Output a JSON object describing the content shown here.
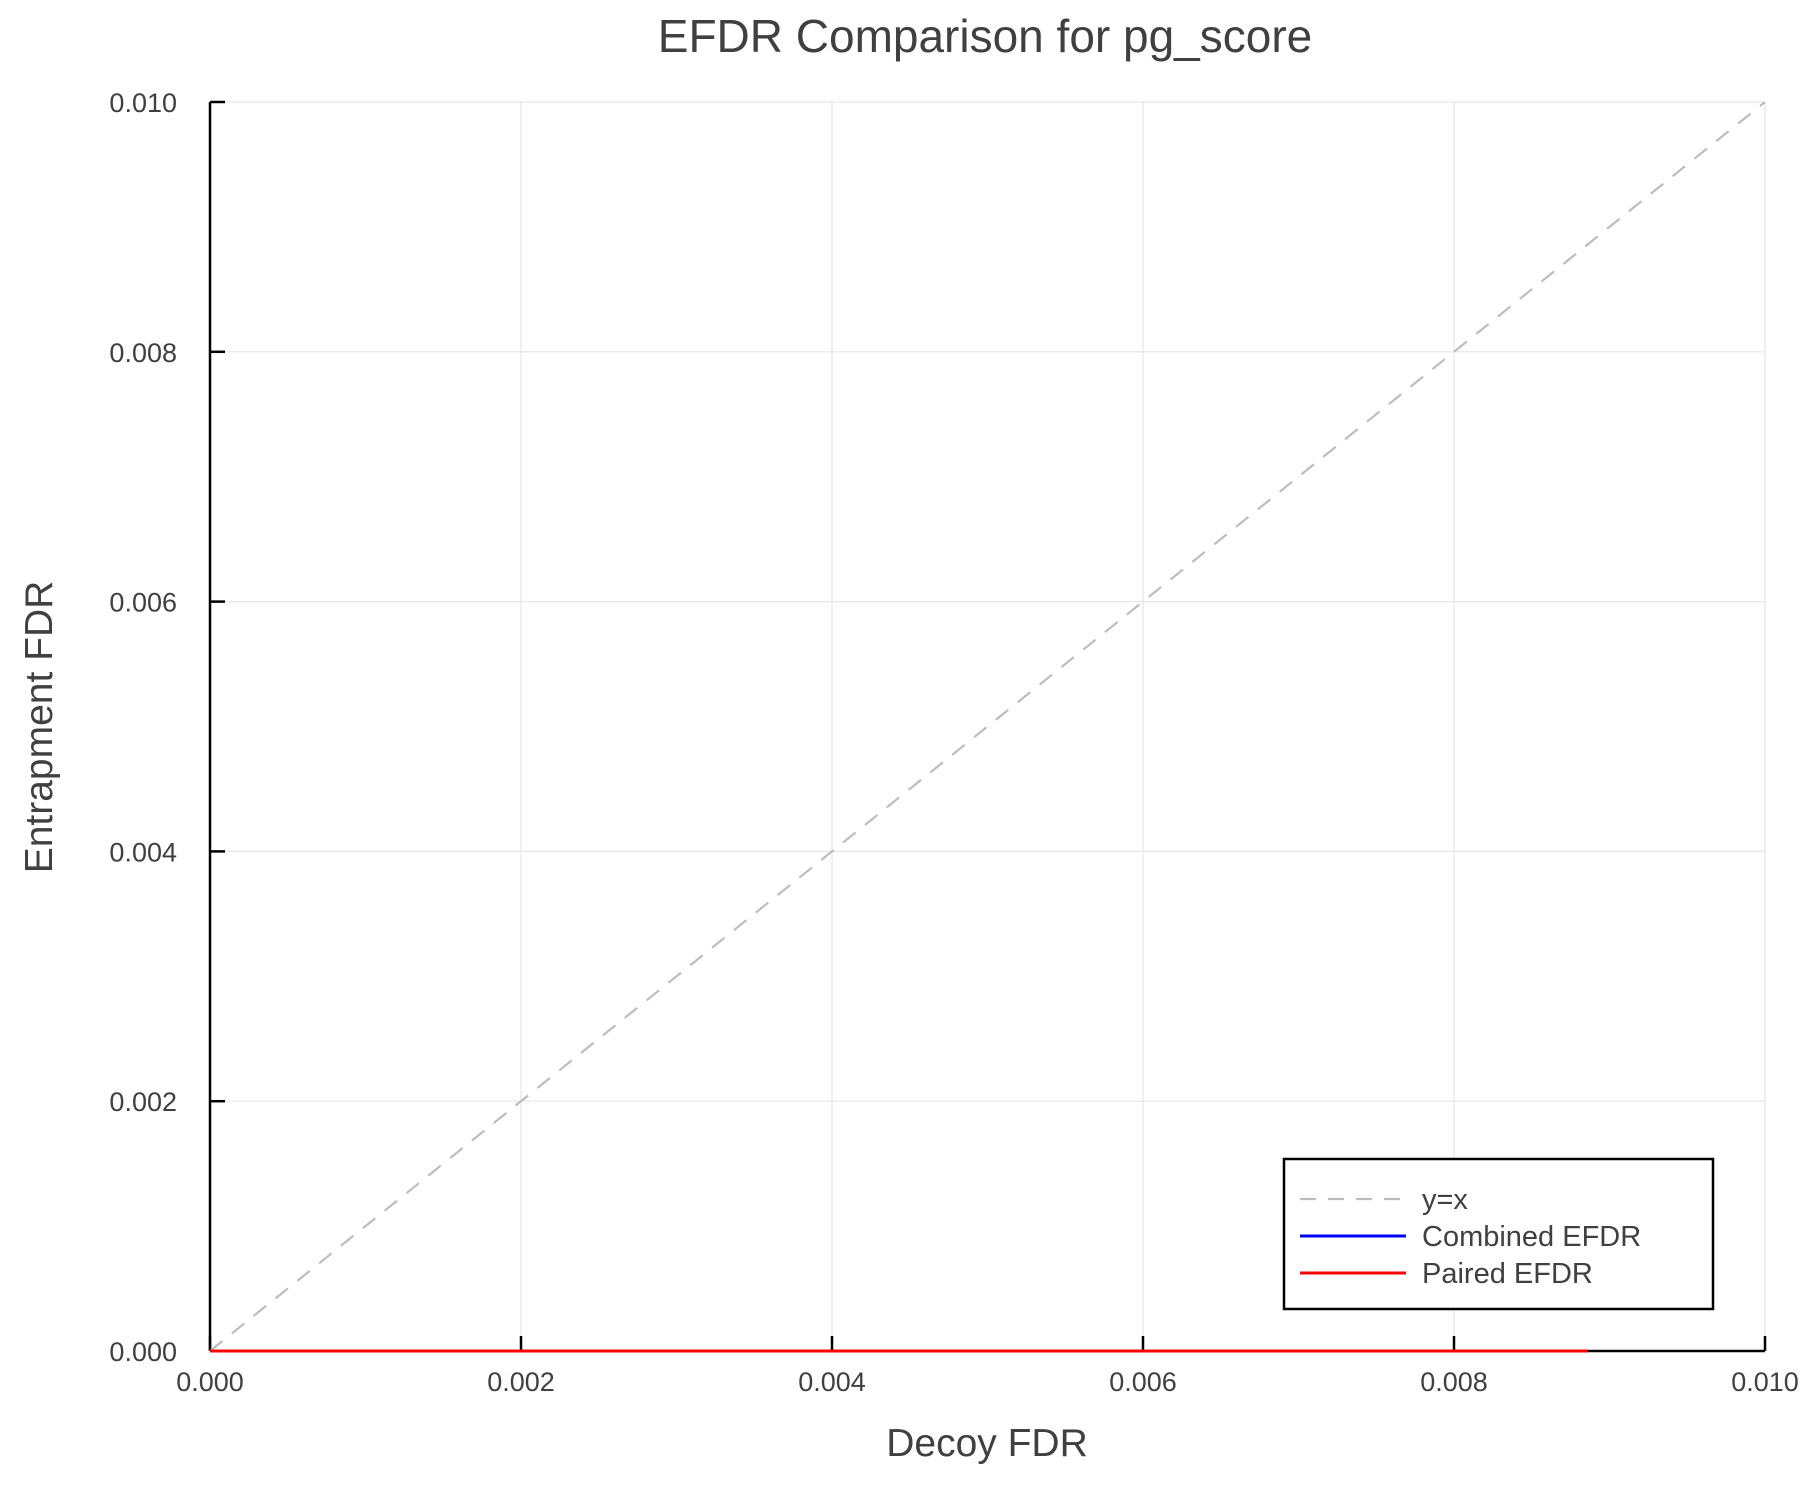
{
  "chart_data": {
    "type": "line",
    "title": "EFDR Comparison for pg_score",
    "xlabel": "Decoy FDR",
    "ylabel": "Entrapment FDR",
    "xlim": [
      0,
      0.01
    ],
    "ylim": [
      0,
      0.01
    ],
    "xticks": [
      "0.000",
      "0.002",
      "0.004",
      "0.006",
      "0.008",
      "0.010"
    ],
    "yticks": [
      "0.000",
      "0.002",
      "0.004",
      "0.006",
      "0.008",
      "0.010"
    ],
    "grid": true,
    "legend_position": "bottom-right",
    "series": [
      {
        "name": "y=x",
        "color": "#bdbdbd",
        "style": "dashed",
        "x": [
          0,
          0.01
        ],
        "y": [
          0,
          0.01
        ]
      },
      {
        "name": "Combined EFDR",
        "color": "#0000ff",
        "style": "solid",
        "x": [
          0,
          0.00886
        ],
        "y": [
          0,
          0
        ]
      },
      {
        "name": "Paired EFDR",
        "color": "#ff0000",
        "style": "solid",
        "x": [
          0,
          0.00886
        ],
        "y": [
          0,
          0
        ]
      }
    ]
  }
}
